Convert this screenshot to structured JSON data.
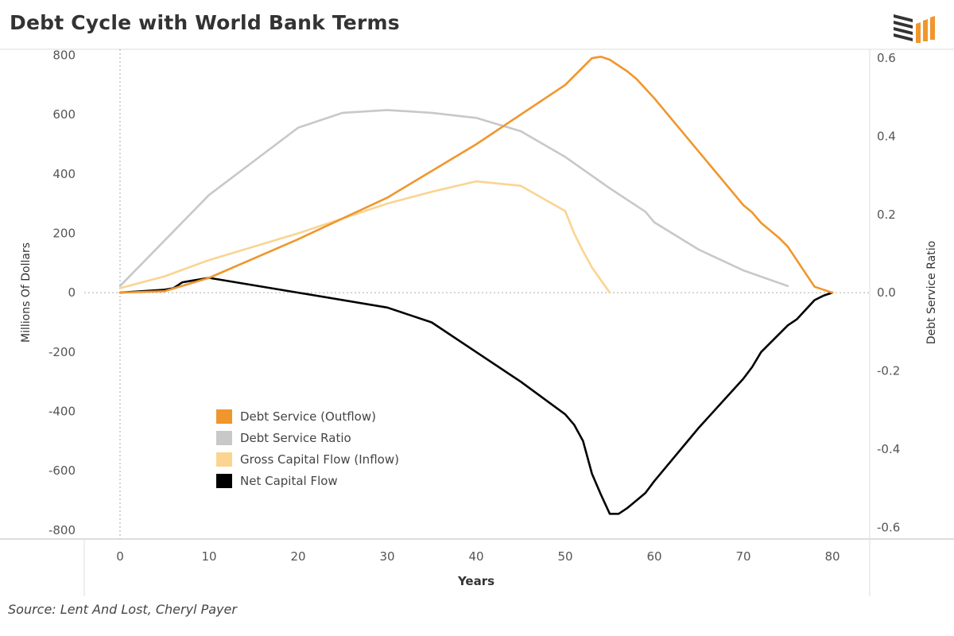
{
  "title": "Debt Cycle with World Bank Terms",
  "source": "Source: Lent And Lost, Cheryl Payer",
  "logo_icon": "bar-stack-logo-icon",
  "chart_data": {
    "type": "line",
    "title": "Debt Cycle with World Bank Terms",
    "xlabel": "Years",
    "ylabel": "Millions Of Dollars",
    "y2label": "Debt Service Ratio",
    "xlim": [
      -4,
      84
    ],
    "ylim": [
      -830,
      820
    ],
    "y2lim": [
      -0.6,
      0.6
    ],
    "x_ticks": [
      0,
      10,
      20,
      30,
      40,
      50,
      60,
      70,
      80
    ],
    "y_ticks": [
      800,
      600,
      400,
      200,
      0,
      -200,
      -400,
      -600,
      -800
    ],
    "y2_ticks": [
      0.6,
      0.4,
      0.2,
      0.0,
      -0.2,
      -0.4,
      -0.6
    ],
    "y2_tick_labels": [
      "0.6",
      "0.4",
      "0.2",
      "0.0",
      "-0.2",
      "-0.4",
      "-0.6"
    ],
    "grid": false,
    "zero_line": true,
    "legend_position": "bottom-left",
    "series": [
      {
        "name": "Debt Service (Outflow)",
        "color": "#f0962d",
        "axis": "left",
        "points": [
          [
            0,
            0
          ],
          [
            5,
            5
          ],
          [
            10,
            50
          ],
          [
            20,
            180
          ],
          [
            30,
            320
          ],
          [
            40,
            500
          ],
          [
            50,
            700
          ],
          [
            53,
            790
          ],
          [
            54,
            795
          ],
          [
            55,
            785
          ],
          [
            57,
            745
          ],
          [
            58,
            720
          ],
          [
            60,
            655
          ],
          [
            65,
            475
          ],
          [
            70,
            295
          ],
          [
            71,
            270
          ],
          [
            72,
            235
          ],
          [
            73,
            210
          ],
          [
            74,
            185
          ],
          [
            75,
            155
          ],
          [
            78,
            20
          ],
          [
            80,
            0
          ]
        ]
      },
      {
        "name": "Debt Service Ratio",
        "color": "#c8c8c8",
        "axis": "right",
        "points": [
          [
            0,
            0.017
          ],
          [
            10,
            0.25
          ],
          [
            20,
            0.422
          ],
          [
            25,
            0.46
          ],
          [
            30,
            0.467
          ],
          [
            35,
            0.46
          ],
          [
            40,
            0.447
          ],
          [
            45,
            0.413
          ],
          [
            50,
            0.347
          ],
          [
            55,
            0.267
          ],
          [
            59,
            0.207
          ],
          [
            60,
            0.18
          ],
          [
            65,
            0.11
          ],
          [
            70,
            0.057
          ],
          [
            75,
            0.017
          ]
        ]
      },
      {
        "name": "Gross Capital Flow (Inflow)",
        "color": "#fad491",
        "axis": "left",
        "points": [
          [
            0,
            15
          ],
          [
            5,
            55
          ],
          [
            10,
            110
          ],
          [
            20,
            200
          ],
          [
            30,
            300
          ],
          [
            35,
            340
          ],
          [
            40,
            375
          ],
          [
            45,
            360
          ],
          [
            50,
            275
          ],
          [
            51,
            200
          ],
          [
            52,
            140
          ],
          [
            53,
            85
          ],
          [
            55,
            0
          ]
        ]
      },
      {
        "name": "Net Capital Flow",
        "color": "#000000",
        "axis": "left",
        "points": [
          [
            0,
            0
          ],
          [
            5,
            10
          ],
          [
            6,
            15
          ],
          [
            7,
            35
          ],
          [
            8,
            40
          ],
          [
            10,
            50
          ],
          [
            20,
            0
          ],
          [
            30,
            -50
          ],
          [
            35,
            -100
          ],
          [
            40,
            -200
          ],
          [
            45,
            -300
          ],
          [
            50,
            -410
          ],
          [
            51,
            -445
          ],
          [
            52,
            -500
          ],
          [
            53,
            -610
          ],
          [
            54,
            -680
          ],
          [
            55,
            -745
          ],
          [
            56,
            -745
          ],
          [
            57,
            -725
          ],
          [
            58,
            -700
          ],
          [
            59,
            -675
          ],
          [
            60,
            -635
          ],
          [
            65,
            -455
          ],
          [
            70,
            -290
          ],
          [
            71,
            -250
          ],
          [
            72,
            -200
          ],
          [
            75,
            -110
          ],
          [
            76,
            -90
          ],
          [
            78,
            -25
          ],
          [
            79,
            -10
          ],
          [
            80,
            0
          ]
        ]
      }
    ]
  }
}
